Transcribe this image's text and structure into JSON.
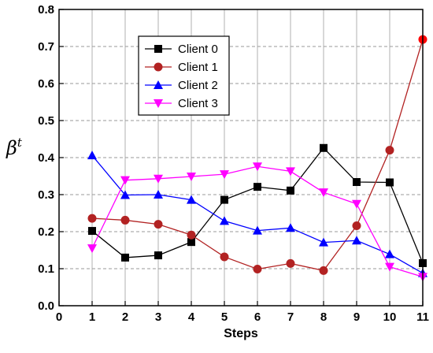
{
  "chart_data": {
    "type": "line",
    "x": [
      1,
      2,
      3,
      4,
      5,
      6,
      7,
      8,
      9,
      10,
      11
    ],
    "series": [
      {
        "name": "Client 0",
        "color": "#000000",
        "marker": "square",
        "values": [
          0.202,
          0.13,
          0.136,
          0.172,
          0.286,
          0.321,
          0.311,
          0.426,
          0.334,
          0.333,
          0.115
        ]
      },
      {
        "name": "Client 1",
        "color": "#b22222",
        "marker": "circle",
        "values": [
          0.236,
          0.231,
          0.22,
          0.191,
          0.132,
          0.099,
          0.114,
          0.095,
          0.216,
          0.42,
          0.719
        ]
      },
      {
        "name": "Client 2",
        "color": "#0000ff",
        "marker": "triangle-up",
        "values": [
          0.406,
          0.299,
          0.3,
          0.286,
          0.229,
          0.203,
          0.21,
          0.171,
          0.176,
          0.139,
          0.088
        ]
      },
      {
        "name": "Client 3",
        "color": "#ff00ff",
        "marker": "triangle-down",
        "values": [
          0.155,
          0.339,
          0.343,
          0.349,
          0.355,
          0.376,
          0.363,
          0.306,
          0.275,
          0.105,
          0.078
        ]
      }
    ],
    "title": "",
    "xlabel": "Steps",
    "ylabel": "β",
    "ylabel_superscript": "t",
    "xlim": [
      0,
      11
    ],
    "ylim": [
      0.0,
      0.8
    ],
    "xticks": [
      "0",
      "1",
      "2",
      "3",
      "4",
      "5",
      "6",
      "7",
      "8",
      "9",
      "10",
      "11"
    ],
    "yticks": [
      "0.0",
      "0.1",
      "0.2",
      "0.3",
      "0.4",
      "0.5",
      "0.6",
      "0.7",
      "0.8"
    ],
    "grid": true,
    "legend_position": "top-left"
  }
}
